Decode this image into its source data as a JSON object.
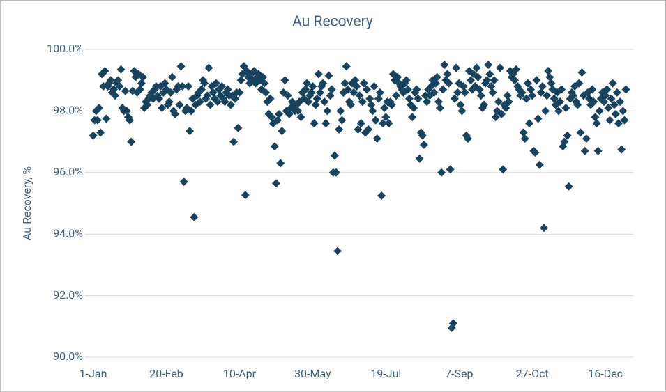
{
  "chart_data": {
    "type": "scatter",
    "title": "Au Recovery",
    "y_label": "Au Recovery, %",
    "color": "#17435f",
    "grid": true,
    "marker": "diamond",
    "xlim": [
      -5,
      370
    ],
    "ylim": [
      90,
      100
    ],
    "xticks": [
      {
        "value": 1,
        "label": "1-Jan"
      },
      {
        "value": 51,
        "label": "20-Feb"
      },
      {
        "value": 101,
        "label": "10-Apr"
      },
      {
        "value": 151,
        "label": "30-May"
      },
      {
        "value": 201,
        "label": "19-Jul"
      },
      {
        "value": 251,
        "label": "7-Sep"
      },
      {
        "value": 301,
        "label": "27-Oct"
      },
      {
        "value": 351,
        "label": "16-Dec"
      }
    ],
    "yticks": [
      {
        "value": 90,
        "label": "90.0%"
      },
      {
        "value": 92,
        "label": "92.0%"
      },
      {
        "value": 94,
        "label": "94.0%"
      },
      {
        "value": 96,
        "label": "96.0%"
      },
      {
        "value": 98,
        "label": "98.0%"
      },
      {
        "value": 100,
        "label": "100.0%"
      }
    ],
    "x": [
      1,
      2,
      3,
      4,
      5,
      6,
      7,
      8,
      9,
      10,
      11,
      12,
      13,
      14,
      15,
      16,
      17,
      18,
      19,
      20,
      21,
      22,
      23,
      24,
      25,
      26,
      27,
      28,
      29,
      30,
      31,
      32,
      33,
      34,
      35,
      36,
      37,
      38,
      39,
      40,
      41,
      42,
      43,
      44,
      45,
      46,
      47,
      48,
      49,
      50,
      51,
      52,
      53,
      54,
      55,
      56,
      57,
      58,
      59,
      60,
      61,
      62,
      63,
      64,
      65,
      66,
      67,
      68,
      69,
      70,
      71,
      72,
      73,
      74,
      75,
      76,
      77,
      78,
      79,
      80,
      81,
      82,
      83,
      84,
      85,
      86,
      87,
      88,
      89,
      90,
      91,
      92,
      93,
      94,
      95,
      96,
      97,
      98,
      99,
      100,
      101,
      102,
      103,
      104,
      105,
      106,
      107,
      108,
      109,
      110,
      111,
      112,
      113,
      114,
      115,
      116,
      117,
      118,
      119,
      120,
      121,
      122,
      123,
      124,
      125,
      126,
      127,
      128,
      129,
      130,
      131,
      132,
      133,
      134,
      135,
      136,
      137,
      138,
      139,
      140,
      141,
      142,
      143,
      144,
      145,
      146,
      147,
      148,
      149,
      150,
      151,
      152,
      153,
      154,
      155,
      156,
      157,
      158,
      159,
      160,
      161,
      162,
      163,
      164,
      165,
      166,
      167,
      168,
      169,
      170,
      171,
      172,
      173,
      174,
      175,
      176,
      177,
      178,
      179,
      180,
      181,
      182,
      183,
      184,
      185,
      186,
      187,
      188,
      189,
      190,
      191,
      192,
      193,
      194,
      195,
      196,
      197,
      198,
      199,
      200,
      201,
      202,
      203,
      204,
      205,
      206,
      207,
      208,
      209,
      210,
      211,
      212,
      213,
      214,
      215,
      216,
      217,
      218,
      219,
      220,
      221,
      222,
      223,
      224,
      225,
      226,
      227,
      228,
      229,
      230,
      231,
      232,
      233,
      234,
      235,
      236,
      237,
      238,
      239,
      240,
      241,
      242,
      243,
      244,
      245,
      246,
      247,
      248,
      249,
      250,
      251,
      252,
      253,
      254,
      255,
      256,
      257,
      258,
      259,
      260,
      261,
      262,
      263,
      264,
      265,
      266,
      267,
      268,
      269,
      270,
      271,
      272,
      273,
      274,
      275,
      276,
      277,
      278,
      279,
      280,
      281,
      282,
      283,
      284,
      285,
      286,
      287,
      288,
      289,
      290,
      291,
      292,
      293,
      294,
      295,
      296,
      297,
      298,
      299,
      300,
      301,
      302,
      303,
      304,
      305,
      306,
      307,
      308,
      309,
      310,
      311,
      312,
      313,
      314,
      315,
      316,
      317,
      318,
      319,
      320,
      321,
      322,
      323,
      324,
      325,
      326,
      327,
      328,
      329,
      330,
      331,
      332,
      333,
      334,
      335,
      336,
      337,
      338,
      339,
      340,
      341,
      342,
      343,
      344,
      345,
      346,
      347,
      348,
      349,
      350,
      351,
      352,
      353,
      354,
      355,
      356,
      357,
      358,
      359,
      360,
      361,
      362,
      363,
      364,
      365
    ],
    "values": [
      97.2,
      97.7,
      98.0,
      97.7,
      98.1,
      97.3,
      99.2,
      98.8,
      99.3,
      97.75,
      98.8,
      98.9,
      99.0,
      98.6,
      98.7,
      98.5,
      98.9,
      99.0,
      98.8,
      99.35,
      98.1,
      98.0,
      98.65,
      98.0,
      97.8,
      97.7,
      97.0,
      98.65,
      99.3,
      99.1,
      98.6,
      99.2,
      98.7,
      98.9,
      99.1,
      98.1,
      98.3,
      98.2,
      98.4,
      98.5,
      98.6,
      98.4,
      98.7,
      98.8,
      98.5,
      98.4,
      98.8,
      98.1,
      98.6,
      98.9,
      98.7,
      98.2,
      98.3,
      98.6,
      99.1,
      98.0,
      97.9,
      98.7,
      98.8,
      98.2,
      99.45,
      98.8,
      95.7,
      98.0,
      98.1,
      98.8,
      97.35,
      98.0,
      98.4,
      94.55,
      98.2,
      98.5,
      98.6,
      98.3,
      98.7,
      99.0,
      98.9,
      98.4,
      98.5,
      99.4,
      98.2,
      98.8,
      98.6,
      98.4,
      98.9,
      98.3,
      98.7,
      98.5,
      98.8,
      98.4,
      98.3,
      98.6,
      98.7,
      98.5,
      98.2,
      98.5,
      97.0,
      98.4,
      98.6,
      97.45,
      98.6,
      99.0,
      99.2,
      99.45,
      95.27,
      99.3,
      99.1,
      98.9,
      99.2,
      99.0,
      99.3,
      98.9,
      99.1,
      99.2,
      99.0,
      98.7,
      99.1,
      98.9,
      98.6,
      98.3,
      97.9,
      98.4,
      97.8,
      97.6,
      96.85,
      95.65,
      97.7,
      97.9,
      96.3,
      97.35,
      98.6,
      99.0,
      98.0,
      98.5,
      97.9,
      98.1,
      98.3,
      98.1,
      98.0,
      98.2,
      98.0,
      98.3,
      97.8,
      98.6,
      98.4,
      98.7,
      98.9,
      98.3,
      98.5,
      98.6,
      98.8,
      97.6,
      98.2,
      98.4,
      99.2,
      98.6,
      98.8,
      98.9,
      98.3,
      97.6,
      98.0,
      99.15,
      98.5,
      98.7,
      96.0,
      96.55,
      96.0,
      93.45,
      97.4,
      98.0,
      97.7,
      98.6,
      98.9,
      99.45,
      98.7,
      98.3,
      98.2,
      98.9,
      98.6,
      99.0,
      98.8,
      97.4,
      98.5,
      97.6,
      98.3,
      98.9,
      97.3,
      98.7,
      97.4,
      98.4,
      98.2,
      98.0,
      98.8,
      97.7,
      97.1,
      98.4,
      98.6,
      95.25,
      97.6,
      98.1,
      97.8,
      98.3,
      97.6,
      98.3,
      98.2,
      99.2,
      99.0,
      98.5,
      99.1,
      98.9,
      98.8,
      98.7,
      98.6,
      98.9,
      99.0,
      98.7,
      98.4,
      98.2,
      97.8,
      98.1,
      98.6,
      98.7,
      98.4,
      96.45,
      97.3,
      97.2,
      96.9,
      98.5,
      98.3,
      98.7,
      98.5,
      98.8,
      99.0,
      98.6,
      98.9,
      99.1,
      98.3,
      98.1,
      96.0,
      98.7,
      99.5,
      99.0,
      99.2,
      98.9,
      96.1,
      90.95,
      91.1,
      98.4,
      99.4,
      98.6,
      98.9,
      98.2,
      98.0,
      98.8,
      98.6,
      97.2,
      97.1,
      99.3,
      99.0,
      98.7,
      99.2,
      98.8,
      99.4,
      99.1,
      98.7,
      98.5,
      98.1,
      98.2,
      98.9,
      99.0,
      99.5,
      99.2,
      98.8,
      98.6,
      99.0,
      97.8,
      98.0,
      98.3,
      99.4,
      97.9,
      96.1,
      98.2,
      98.1,
      98.5,
      98.3,
      99.3,
      99.1,
      99.2,
      99.0,
      99.35,
      98.8,
      98.7,
      98.5,
      98.6,
      97.3,
      97.1,
      98.4,
      98.9,
      97.6,
      98.7,
      98.5,
      96.7,
      96.65,
      99.0,
      97.75,
      96.25,
      98.6,
      98.8,
      94.2,
      98.0,
      98.5,
      99.3,
      99.1,
      98.9,
      98.7,
      98.4,
      98.2,
      98.6,
      98.0,
      98.3,
      98.7,
      96.85,
      97.0,
      98.1,
      97.2,
      95.55,
      98.4,
      98.6,
      98.5,
      98.8,
      98.3,
      98.2,
      98.9,
      97.3,
      99.25,
      98.5,
      96.7,
      97.1,
      98.6,
      98.4,
      98.2,
      98.7,
      98.3,
      97.8,
      97.6,
      96.7,
      98.0,
      98.4,
      98.6,
      98.3,
      98.5,
      98.7,
      98.1,
      97.7,
      98.4,
      98.9,
      98.2,
      97.9,
      98.6,
      97.6,
      98.3,
      96.75,
      98.0,
      97.7,
      98.7
    ]
  }
}
